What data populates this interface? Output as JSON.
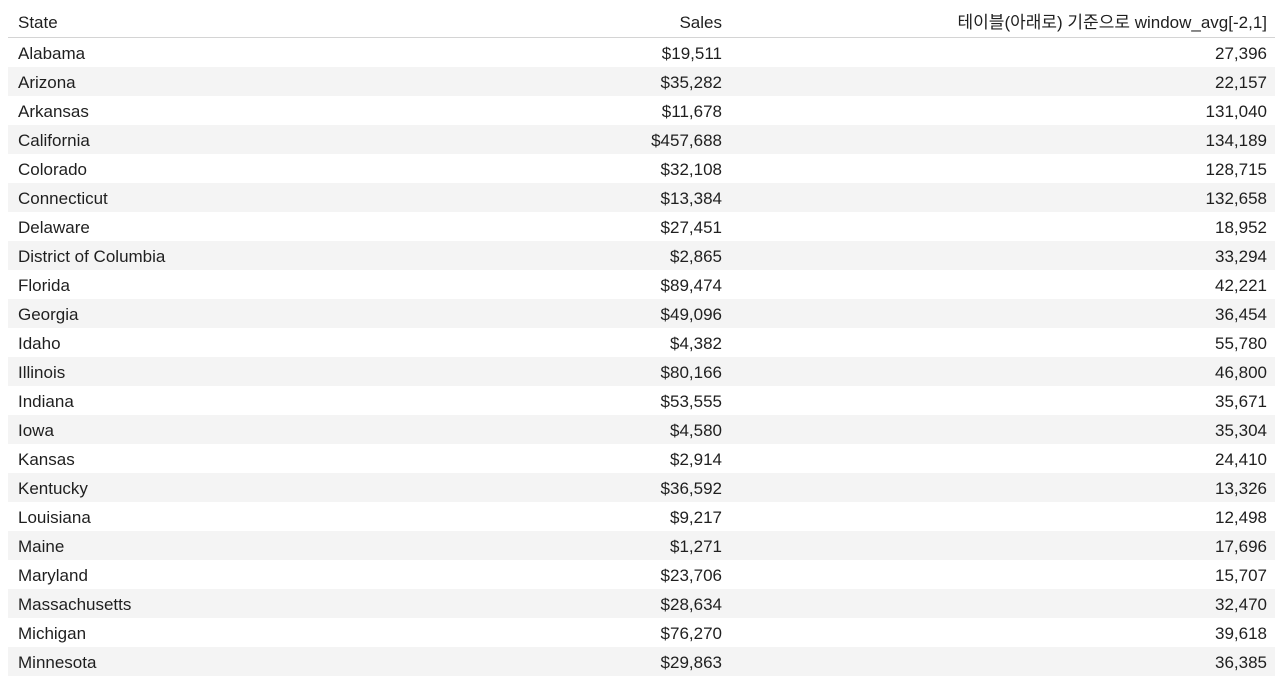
{
  "chart_data": {
    "type": "table",
    "columns": [
      "State",
      "Sales",
      "테이블(아래로) 기준으로 window_avg[-2,1]"
    ],
    "rows": [
      {
        "state": "Alabama",
        "sales": "$19,511",
        "avg": "27,396"
      },
      {
        "state": "Arizona",
        "sales": "$35,282",
        "avg": "22,157"
      },
      {
        "state": "Arkansas",
        "sales": "$11,678",
        "avg": "131,040"
      },
      {
        "state": "California",
        "sales": "$457,688",
        "avg": "134,189"
      },
      {
        "state": "Colorado",
        "sales": "$32,108",
        "avg": "128,715"
      },
      {
        "state": "Connecticut",
        "sales": "$13,384",
        "avg": "132,658"
      },
      {
        "state": "Delaware",
        "sales": "$27,451",
        "avg": "18,952"
      },
      {
        "state": "District of Columbia",
        "sales": "$2,865",
        "avg": "33,294"
      },
      {
        "state": "Florida",
        "sales": "$89,474",
        "avg": "42,221"
      },
      {
        "state": "Georgia",
        "sales": "$49,096",
        "avg": "36,454"
      },
      {
        "state": "Idaho",
        "sales": "$4,382",
        "avg": "55,780"
      },
      {
        "state": "Illinois",
        "sales": "$80,166",
        "avg": "46,800"
      },
      {
        "state": "Indiana",
        "sales": "$53,555",
        "avg": "35,671"
      },
      {
        "state": "Iowa",
        "sales": "$4,580",
        "avg": "35,304"
      },
      {
        "state": "Kansas",
        "sales": "$2,914",
        "avg": "24,410"
      },
      {
        "state": "Kentucky",
        "sales": "$36,592",
        "avg": "13,326"
      },
      {
        "state": "Louisiana",
        "sales": "$9,217",
        "avg": "12,498"
      },
      {
        "state": "Maine",
        "sales": "$1,271",
        "avg": "17,696"
      },
      {
        "state": "Maryland",
        "sales": "$23,706",
        "avg": "15,707"
      },
      {
        "state": "Massachusetts",
        "sales": "$28,634",
        "avg": "32,470"
      },
      {
        "state": "Michigan",
        "sales": "$76,270",
        "avg": "39,618"
      },
      {
        "state": "Minnesota",
        "sales": "$29,863",
        "avg": "36,385"
      }
    ]
  }
}
